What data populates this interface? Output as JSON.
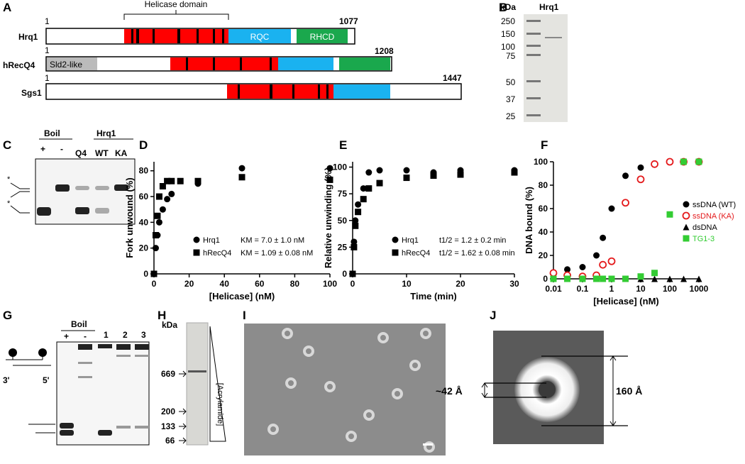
{
  "panel_labels": [
    "A",
    "B",
    "C",
    "D",
    "E",
    "F",
    "G",
    "H",
    "I",
    "J"
  ],
  "domain_map": {
    "helicase_label": "Helicase domain",
    "proteins": [
      {
        "name": "Hrq1",
        "start": "1",
        "end": "1077",
        "domains": [
          "RQC",
          "RHCD"
        ]
      },
      {
        "name": "hRecQ4",
        "start": "1",
        "end": "1208",
        "domains": [
          "Sld2-like"
        ]
      },
      {
        "name": "Sgs1",
        "start": "1",
        "end": "1447"
      }
    ]
  },
  "gel_b": {
    "unit": "kDa",
    "lane": "Hrq1",
    "markers": [
      "250",
      "150",
      "100",
      "75",
      "50",
      "37",
      "25"
    ]
  },
  "gel_c": {
    "groups": [
      "Boil",
      "Hrq1"
    ],
    "lanes": [
      "+",
      "-",
      "Q4",
      "WT",
      "KA"
    ]
  },
  "chart_data": [
    {
      "type": "scatter",
      "x_label": "[Helicase] (nM)",
      "y_label": "Fork unwound (%)",
      "xlim": [
        0,
        100
      ],
      "xticks": [
        0,
        20,
        40,
        60,
        80,
        100
      ],
      "ylim": [
        0,
        87
      ],
      "yticks": [
        0,
        20,
        40,
        60,
        80
      ],
      "legend": "lower right",
      "series": [
        {
          "name": "Hrq1",
          "fit_label": "KM = 7.0 ± 1.0 nM",
          "color": "#000000",
          "marker": "circle",
          "x": [
            0,
            1,
            2,
            3,
            5,
            7.5,
            10,
            25,
            50,
            100
          ],
          "values": [
            0,
            20,
            30,
            40,
            50,
            58,
            62,
            70,
            82,
            82
          ]
        },
        {
          "name": "hRecQ4",
          "fit_label": "KM = 1.09 ± 0.08 nM",
          "color": "#000000",
          "marker": "square",
          "x": [
            0,
            1,
            2,
            3,
            5,
            7.5,
            10,
            15,
            25,
            50,
            100
          ],
          "values": [
            0,
            30,
            45,
            60,
            68,
            72,
            72,
            72,
            72,
            75,
            73
          ]
        }
      ]
    },
    {
      "type": "scatter",
      "x_label": "Time (min)",
      "y_label": "Relative unwinding (%)",
      "xlim": [
        0,
        30
      ],
      "xticks": [
        0,
        10,
        20,
        30
      ],
      "ylim": [
        0,
        105
      ],
      "yticks": [
        0,
        25,
        50,
        75,
        100
      ],
      "legend": "lower right",
      "series": [
        {
          "name": "Hrq1",
          "fit_label": "t1/2 = 1.2 ± 0.2 min",
          "color": "#000000",
          "marker": "circle",
          "x": [
            0,
            0.25,
            0.5,
            1,
            2,
            3,
            5,
            10,
            15,
            20,
            30
          ],
          "values": [
            0,
            30,
            50,
            65,
            80,
            95,
            97,
            97,
            95,
            97,
            97
          ]
        },
        {
          "name": "hRecQ4",
          "fit_label": "t1/2 = 1.62 ± 0.08 min",
          "color": "#000000",
          "marker": "square",
          "x": [
            0,
            0.25,
            0.5,
            1,
            2,
            3,
            5,
            10,
            15,
            20,
            30
          ],
          "values": [
            0,
            25,
            45,
            58,
            70,
            80,
            85,
            90,
            92,
            93,
            95
          ]
        }
      ]
    },
    {
      "type": "scatter",
      "x_label": "[Helicase] (nM)",
      "y_label": "DNA bound (%)",
      "log_x": true,
      "xlim": [
        0.01,
        1000
      ],
      "xticks": [
        0.01,
        0.1,
        1,
        10,
        100,
        1000
      ],
      "ylim": [
        0,
        100
      ],
      "yticks": [
        0,
        20,
        40,
        60,
        80,
        100
      ],
      "legend": "right",
      "series": [
        {
          "name": "ssDNA (WT)",
          "color": "#000000",
          "marker": "circle",
          "x": [
            0.01,
            0.03,
            0.1,
            0.3,
            0.5,
            1,
            3,
            10,
            30,
            100,
            300,
            1000
          ],
          "values": [
            5,
            8,
            10,
            20,
            35,
            60,
            88,
            95,
            98,
            100,
            100,
            100
          ]
        },
        {
          "name": "ssDNA (KA)",
          "color": "#e41a1c",
          "marker": "open-circle",
          "x": [
            0.01,
            0.03,
            0.1,
            0.3,
            0.5,
            1,
            3,
            10,
            30,
            100,
            300,
            1000
          ],
          "values": [
            5,
            3,
            2,
            3,
            12,
            15,
            65,
            85,
            98,
            100,
            100,
            100
          ]
        },
        {
          "name": "dsDNA",
          "color": "#000000",
          "marker": "triangle",
          "x": [
            0.01,
            0.03,
            0.1,
            0.3,
            0.5,
            1,
            3,
            10,
            30,
            100,
            300,
            1000
          ],
          "values": [
            0,
            0,
            0,
            0,
            0,
            0,
            0,
            0,
            0,
            0,
            0,
            0
          ]
        },
        {
          "name": "TG1-3",
          "color": "#33cc33",
          "marker": "square",
          "x": [
            0.01,
            0.03,
            0.1,
            0.3,
            0.5,
            1,
            3,
            10,
            30,
            100,
            300,
            1000
          ],
          "values": [
            0,
            0,
            0,
            0,
            0,
            0,
            0,
            2,
            5,
            55,
            100,
            100
          ]
        }
      ]
    }
  ],
  "gel_g": {
    "group": "Boil",
    "lanes": [
      "+",
      "-",
      "1",
      "2",
      "3"
    ],
    "ends": [
      "3'",
      "5'"
    ]
  },
  "gel_h": {
    "unit": "kDa",
    "markers": [
      "669",
      "200",
      "133",
      "66"
    ],
    "label": "[Acrylamide]"
  },
  "em_j": {
    "inner": "~42 Å",
    "outer": "160 Å"
  }
}
